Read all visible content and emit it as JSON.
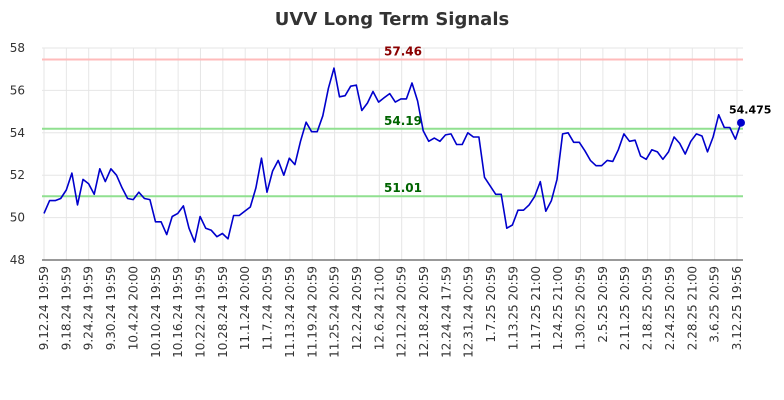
{
  "chart_data": {
    "type": "line",
    "title": "UVV Long Term Signals",
    "xlabel": "",
    "ylabel": "",
    "ylim": [
      48,
      58
    ],
    "yticks": [
      48,
      50,
      52,
      54,
      56,
      58
    ],
    "grid": true,
    "x_tick_labels": [
      "9.12.24 19:59",
      "9.18.24 19:59",
      "9.24.24 19:59",
      "9.30.24 19:59",
      "10.4.24 20:00",
      "10.10.24 19:59",
      "10.16.24 19:59",
      "10.22.24 19:59",
      "10.28.24 19:59",
      "11.1.24 20:00",
      "11.7.24 20:59",
      "11.13.24 20:59",
      "11.19.24 20:59",
      "11.25.24 20:59",
      "12.2.24 20:59",
      "12.6.24 21:00",
      "12.12.24 20:59",
      "12.18.24 20:59",
      "12.24.24 17:59",
      "12.31.24 20:59",
      "1.7.25 20:59",
      "1.13.25 20:59",
      "1.17.25 21:00",
      "1.24.25 21:00",
      "1.30.25 20:59",
      "2.5.25 20:59",
      "2.11.25 20:59",
      "2.18.25 20:59",
      "2.24.25 20:59",
      "2.28.25 21:00",
      "3.6.25 20:59",
      "3.12.25 19:56"
    ],
    "reference_lines": [
      {
        "value": 57.46,
        "label": "57.46",
        "color": "#ffbbbb",
        "label_color": "#8b0000"
      },
      {
        "value": 54.19,
        "label": "54.19",
        "color": "#90e090",
        "label_color": "#006400"
      },
      {
        "value": 51.01,
        "label": "51.01",
        "color": "#90e090",
        "label_color": "#006400"
      }
    ],
    "series": [
      {
        "color": "#0000cc",
        "values": [
          50.2,
          50.8,
          50.8,
          50.9,
          51.3,
          52.1,
          50.6,
          51.8,
          51.6,
          51.1,
          52.3,
          51.7,
          52.3,
          52.0,
          51.4,
          50.9,
          50.85,
          51.2,
          50.9,
          50.85,
          49.8,
          49.8,
          49.2,
          50.05,
          50.2,
          50.55,
          49.5,
          48.85,
          50.05,
          49.5,
          49.4,
          49.1,
          49.25,
          49.0,
          50.1,
          50.1,
          50.3,
          50.5,
          51.4,
          52.8,
          51.2,
          52.2,
          52.7,
          52.0,
          52.8,
          52.5,
          53.6,
          54.5,
          54.05,
          54.05,
          54.8,
          56.1,
          57.05,
          55.7,
          55.75,
          56.2,
          56.25,
          55.05,
          55.4,
          55.95,
          55.45,
          55.65,
          55.85,
          55.45,
          55.6,
          55.6,
          56.35,
          55.5,
          54.1,
          53.6,
          53.75,
          53.6,
          53.9,
          53.95,
          53.45,
          53.45,
          54.0,
          53.8,
          53.8,
          51.9,
          51.5,
          51.1,
          51.1,
          49.5,
          49.65,
          50.35,
          50.35,
          50.6,
          51.0,
          51.7,
          50.3,
          50.8,
          51.8,
          53.95,
          54.0,
          53.55,
          53.55,
          53.15,
          52.7,
          52.45,
          52.45,
          52.7,
          52.65,
          53.2,
          53.95,
          53.6,
          53.65,
          52.9,
          52.75,
          53.2,
          53.1,
          52.75,
          53.1,
          53.8,
          53.5,
          53.0,
          53.6,
          53.95,
          53.85,
          53.1,
          53.8,
          54.85,
          54.25,
          54.25,
          53.7,
          54.475
        ]
      }
    ],
    "last_value": 54.475,
    "last_value_label": "54.475"
  }
}
